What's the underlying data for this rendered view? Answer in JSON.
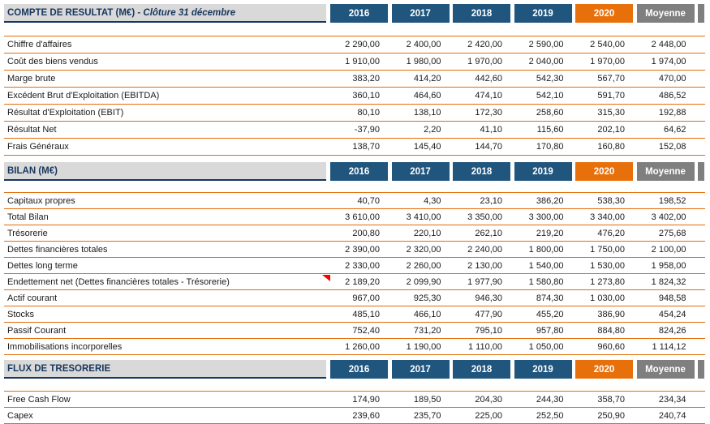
{
  "colors": {
    "header_navy": "#20557D",
    "header_orange_2020": "#E8700A",
    "header_gray_moyenne": "#7F7F7F",
    "section_band_gray": "#D9D9D9",
    "section_title_navy": "#17375E",
    "row_line_orange": "#E36C09",
    "text_color": "#1A1A1A",
    "comment_marker_red": "#FF0000"
  },
  "columns": [
    "2016",
    "2017",
    "2018",
    "2019",
    "2020",
    "Moyenne"
  ],
  "highlight_column": "2020",
  "average_column": "Moyenne",
  "sections": [
    {
      "title": "COMPTE DE RESULTAT (M€)",
      "title_suffix": " - Clôture 31 décembre",
      "rows": [
        {
          "label": "Chiffre d'affaires",
          "values": [
            "2 290,00",
            "2 400,00",
            "2 420,00",
            "2 590,00",
            "2 540,00",
            "2 448,00"
          ]
        },
        {
          "label": "Coût des biens vendus",
          "values": [
            "1 910,00",
            "1 980,00",
            "1 970,00",
            "2 040,00",
            "1 970,00",
            "1 974,00"
          ]
        },
        {
          "label": "Marge brute",
          "values": [
            "383,20",
            "414,20",
            "442,60",
            "542,30",
            "567,70",
            "470,00"
          ]
        },
        {
          "label": "Excédent Brut d'Exploitation (EBITDA)",
          "values": [
            "360,10",
            "464,60",
            "474,10",
            "542,10",
            "591,70",
            "486,52"
          ]
        },
        {
          "label": "Résultat d'Exploitation (EBIT)",
          "values": [
            "80,10",
            "138,10",
            "172,30",
            "258,60",
            "315,30",
            "192,88"
          ]
        },
        {
          "label": "Résultat Net",
          "values": [
            "-37,90",
            "2,20",
            "41,10",
            "115,60",
            "202,10",
            "64,62"
          ]
        },
        {
          "label": "Frais Généraux",
          "values": [
            "138,70",
            "145,40",
            "144,70",
            "170,80",
            "160,80",
            "152,08"
          ]
        }
      ]
    },
    {
      "title": "BILAN (M€)",
      "title_suffix": "",
      "rows": [
        {
          "label": "Capitaux propres",
          "values": [
            "40,70",
            "4,30",
            "23,10",
            "386,20",
            "538,30",
            "198,52"
          ]
        },
        {
          "label": "Total Bilan",
          "values": [
            "3 610,00",
            "3 410,00",
            "3 350,00",
            "3 300,00",
            "3 340,00",
            "3 402,00"
          ]
        },
        {
          "label": "Trésorerie",
          "values": [
            "200,80",
            "220,10",
            "262,10",
            "219,20",
            "476,20",
            "275,68"
          ]
        },
        {
          "label": "Dettes financières totales",
          "values": [
            "2 390,00",
            "2 320,00",
            "2 240,00",
            "1 800,00",
            "1 750,00",
            "2 100,00"
          ]
        },
        {
          "label": "Dettes long terme",
          "values": [
            "2 330,00",
            "2 260,00",
            "2 130,00",
            "1 540,00",
            "1 530,00",
            "1 958,00"
          ]
        },
        {
          "label": "Endettement net (Dettes financières totales - Trésorerie)",
          "has_comment_marker": true,
          "values": [
            "2 189,20",
            "2 099,90",
            "1 977,90",
            "1 580,80",
            "1 273,80",
            "1 824,32"
          ]
        },
        {
          "label": "Actif courant",
          "values": [
            "967,00",
            "925,30",
            "946,30",
            "874,30",
            "1 030,00",
            "948,58"
          ]
        },
        {
          "label": "Stocks",
          "values": [
            "485,10",
            "466,10",
            "477,90",
            "455,20",
            "386,90",
            "454,24"
          ]
        },
        {
          "label": "Passif Courant",
          "values": [
            "752,40",
            "731,20",
            "795,10",
            "957,80",
            "884,80",
            "824,26"
          ]
        },
        {
          "label": "Immobilisations incorporelles",
          "values": [
            "1 260,00",
            "1 190,00",
            "1 110,00",
            "1 050,00",
            "960,60",
            "1 114,12"
          ]
        }
      ]
    },
    {
      "title": "FLUX DE TRESORERIE",
      "title_suffix": "",
      "rows": [
        {
          "label": "Free Cash Flow",
          "values": [
            "174,90",
            "189,50",
            "204,30",
            "244,30",
            "358,70",
            "234,34"
          ]
        },
        {
          "label": "Capex",
          "values": [
            "239,60",
            "235,70",
            "225,00",
            "252,50",
            "250,90",
            "240,74"
          ]
        }
      ]
    }
  ]
}
